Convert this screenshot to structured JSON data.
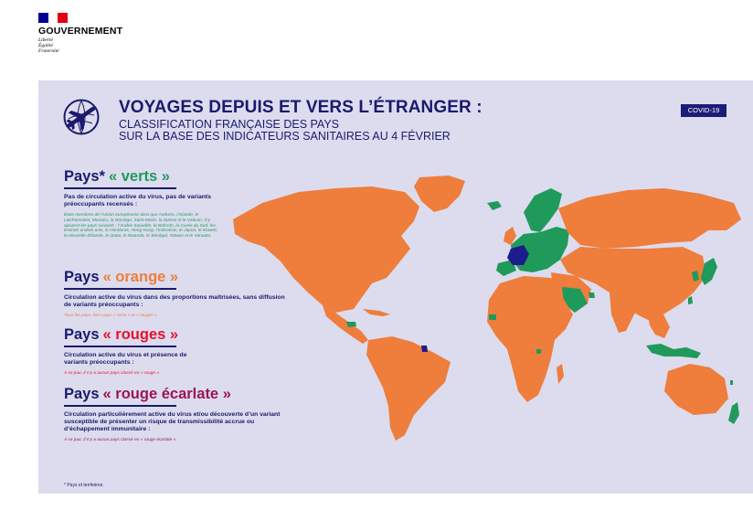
{
  "government": {
    "name": "GOUVERNEMENT",
    "motto": [
      "Liberté",
      "Égalité",
      "Fraternité"
    ],
    "flag_colors": [
      "#000091",
      "#ffffff",
      "#e1000f"
    ]
  },
  "header": {
    "icon": "airplane-globe-icon",
    "title": "VOYAGES DEPUIS ET VERS L’ÉTRANGER :",
    "subtitle_line1": "CLASSIFICATION FRANÇAISE DES PAYS",
    "subtitle_line2": "SUR LA BASE DES INDICATEURS SANITAIRES AU 4 FÉVRIER",
    "badge": "COVID-19"
  },
  "categories": [
    {
      "prefix": "Pays*",
      "name": "« verts »",
      "color": "#1f9a5a",
      "description": "Pas de circulation active du virus, pas de variants préoccupants recensés :",
      "note": "États membres de l’Union européenne ainsi que Andorre, l’Islande, le Liechtenstein, Monaco, la Norvège, Saint-Marin, la Suisse et le Vatican. S’y ajoutent les pays suivants : l’Arabie Saoudite, le Bahreïn, la Corée du Sud, les Émirats arabes unis, le Honduras, Hong-Kong, l’Indonésie, le Japon, le Koweït, la Nouvelle-Zélande, le Qatar, le Rwanda, le Sénégal, Taïwan et le Vanuatu."
    },
    {
      "prefix": "Pays",
      "name": "« orange »",
      "color": "#ef7d3c",
      "description": "Circulation active du virus dans des proportions maîtrisées, sans diffusion de variants préoccupants :",
      "note": "Tous les pays, hors pays « verts » et « rouges »."
    },
    {
      "prefix": "Pays",
      "name": "« rouges »",
      "color": "#e8102d",
      "description": "Circulation active du virus et présence de variants préoccupants :",
      "note": "À ce jour, il n’y a aucun pays classé en « rouge »."
    },
    {
      "prefix": "Pays",
      "name": "« rouge écarlate »",
      "color": "#9b1458",
      "description": "Circulation particulièrement active du virus et/ou découverte d’un variant susceptible de présenter un risque de transmissibilité accrue ou d’échappement immunitaire :",
      "note": "À ce jour, il n’y a aucun pays classé en « rouge écarlate »."
    }
  ],
  "footnote": "* Pays et territoires.",
  "map": {
    "colors": {
      "orange": "#ef7d3c",
      "green": "#1f9a5a",
      "france": "#1c1c8c",
      "background": "#dcdcee",
      "navy": "#1a1a6e"
    }
  }
}
